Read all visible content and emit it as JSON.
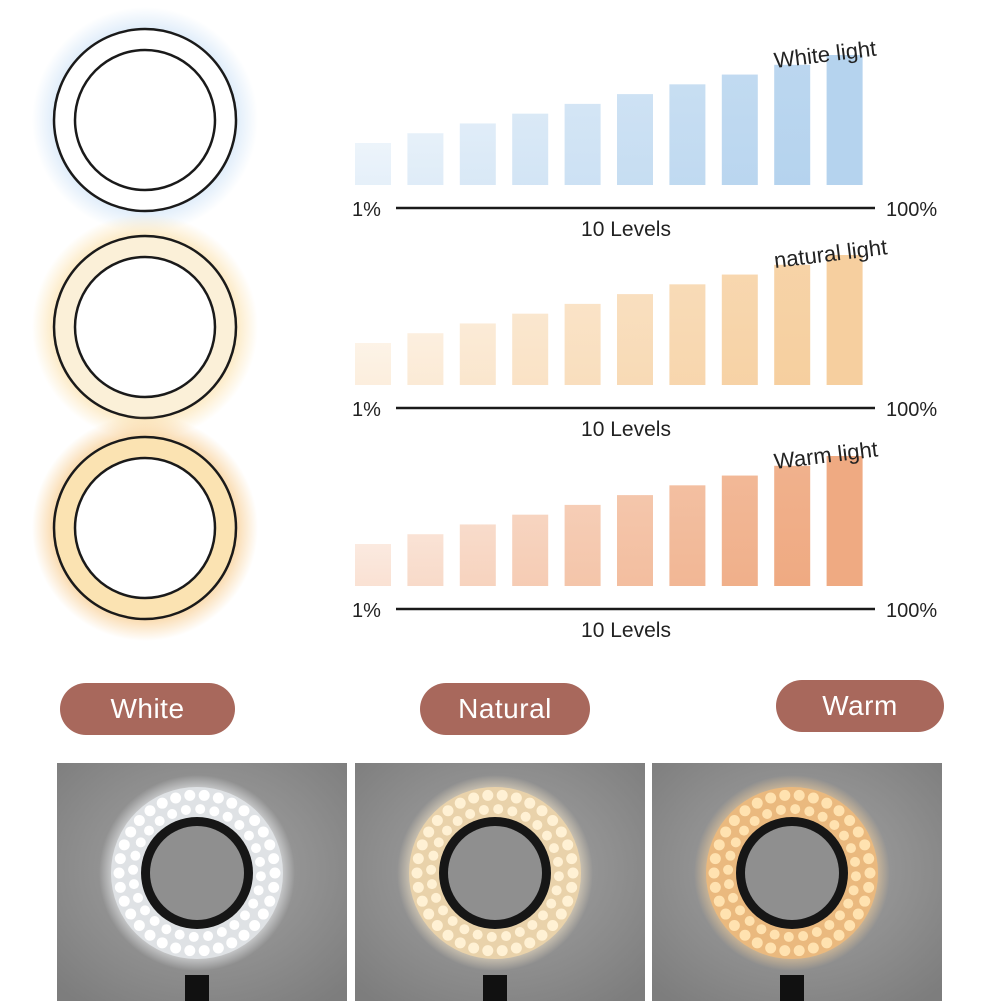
{
  "modes": [
    {
      "id": "white",
      "pill_label": "White",
      "chart_label": "White light",
      "min_label": "1%",
      "max_label": "100%",
      "levels_label": "10 Levels",
      "ring_glow": "#cfe3f7",
      "ring_fill": "#ffffff",
      "bar_color": "#b5d3ee",
      "photo_glow": "#f2f4f6",
      "photo_led": "#ffffff",
      "photo_band": "#dfe2e5"
    },
    {
      "id": "natural",
      "pill_label": "Natural",
      "chart_label": "natural light",
      "min_label": "1%",
      "max_label": "100%",
      "levels_label": "10 Levels",
      "ring_glow": "#fbdfa6",
      "ring_fill": "#fbf0d8",
      "bar_color": "#f6cf9f",
      "photo_glow": "#f6e6c8",
      "photo_led": "#fff1d4",
      "photo_band": "#e9d2aa"
    },
    {
      "id": "warm",
      "pill_label": "Warm",
      "chart_label": "Warm light",
      "min_label": "1%",
      "max_label": "100%",
      "levels_label": "10 Levels",
      "ring_glow": "#f7c783",
      "ring_fill": "#fbe3b2",
      "bar_color": "#efaa82",
      "photo_glow": "#f4cf9a",
      "photo_led": "#ffe2b0",
      "photo_band": "#eab97e"
    }
  ],
  "levels": [
    1,
    2,
    3,
    4,
    5,
    6,
    7,
    8,
    9,
    10
  ],
  "colors": {
    "pill_bg": "#a8685c",
    "pill_text": "#ffffff",
    "photo_bg": "#8d8d8d",
    "ring_outline": "#1a1a1a"
  }
}
